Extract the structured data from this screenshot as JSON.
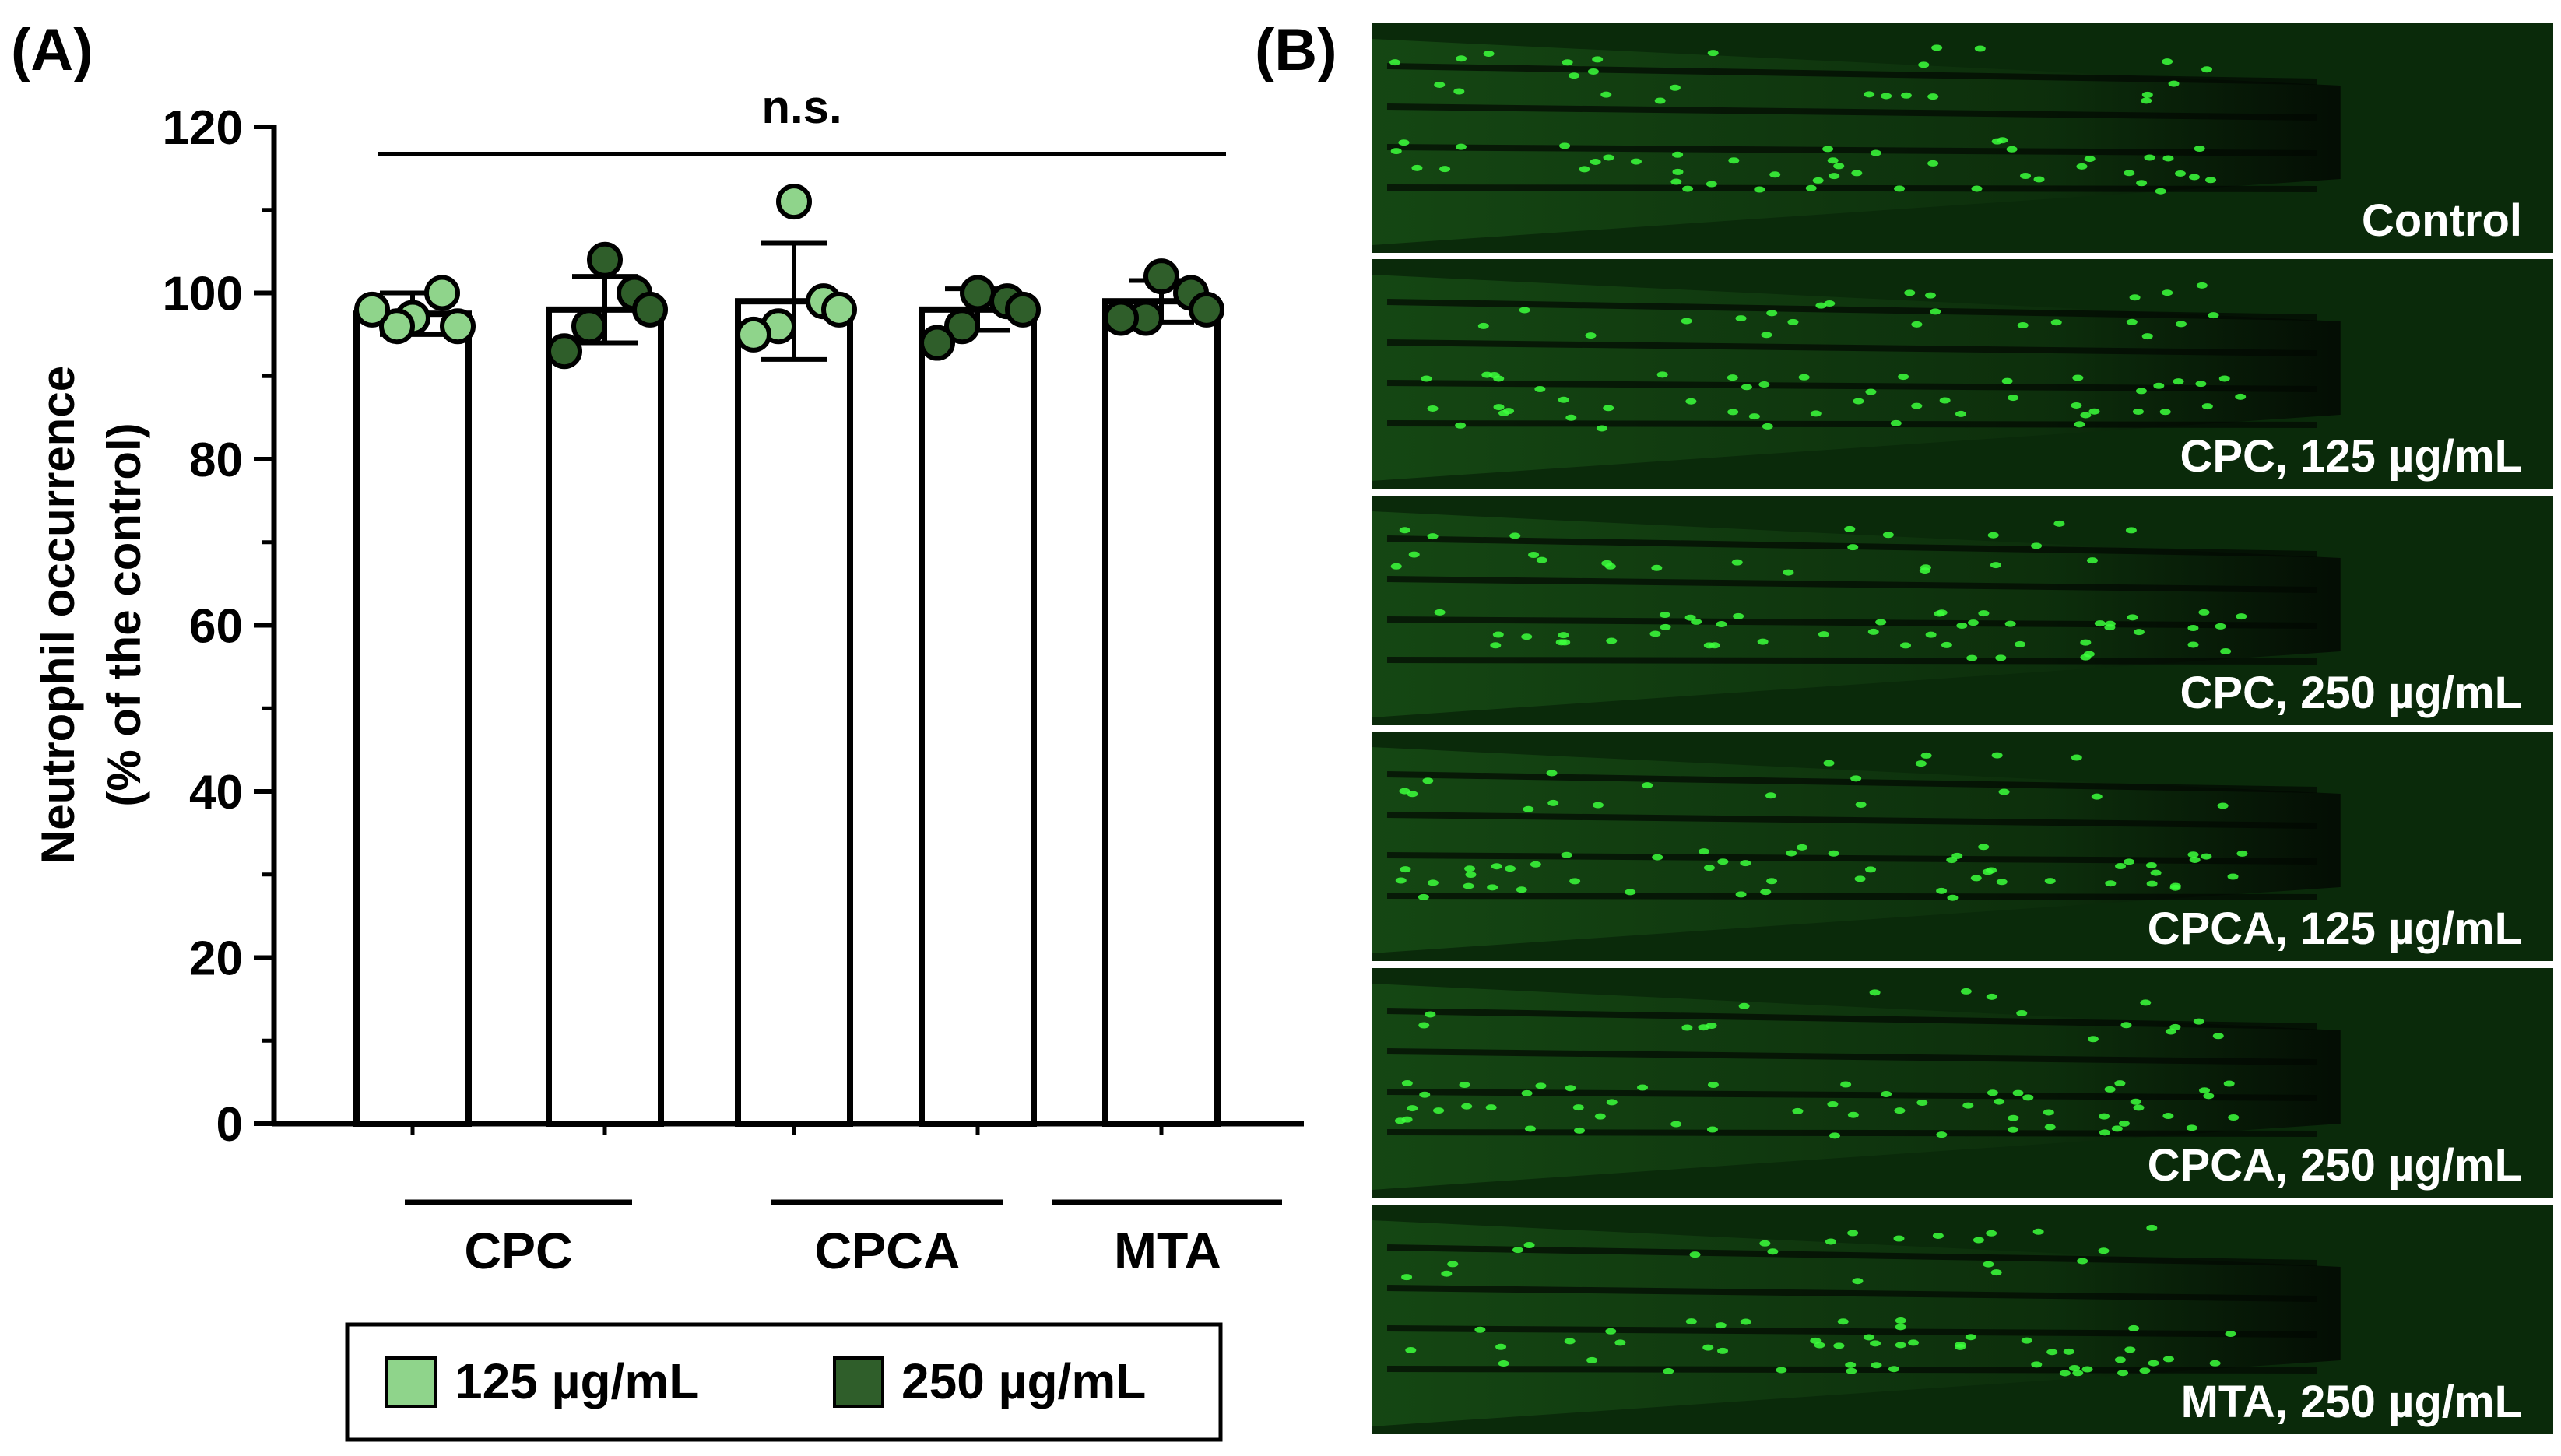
{
  "panel_a_label": "(A)",
  "panel_b_label": "(B)",
  "significance": "n.s.",
  "colors": {
    "low_dose": "#8fd48b",
    "high_dose": "#2f5e2a",
    "bar_fill": "#ffffff",
    "axis": "#000000",
    "micro_bg": "#0a2a0a",
    "micro_cell": "#3cff3c"
  },
  "chart_data": {
    "type": "bar",
    "ylabel_line1": "Neutrophil occurrence",
    "ylabel_line2": "(% of the control)",
    "ylim": [
      0,
      120
    ],
    "yticks": [
      "0",
      "20",
      "40",
      "60",
      "80",
      "100",
      "120"
    ],
    "group_labels": [
      "CPC",
      "CPCA",
      "MTA"
    ],
    "legend": [
      "125 µg/mL",
      "250 µg/mL"
    ],
    "bars": [
      {
        "group": "CPC",
        "dose": "125",
        "mean": 97.5,
        "sd": 2.5,
        "points": [
          97,
          100,
          96,
          98,
          96
        ]
      },
      {
        "group": "CPC",
        "dose": "250",
        "mean": 98,
        "sd": 4,
        "points": [
          104,
          100,
          96,
          93,
          98
        ]
      },
      {
        "group": "CPCA",
        "dose": "125",
        "mean": 99,
        "sd": 7,
        "points": [
          111,
          99,
          96,
          95,
          98
        ]
      },
      {
        "group": "CPCA",
        "dose": "250",
        "mean": 98,
        "sd": 2.5,
        "points": [
          100,
          99,
          96,
          94,
          98
        ]
      },
      {
        "group": "MTA",
        "dose": "250",
        "mean": 99,
        "sd": 2.5,
        "points": [
          102,
          100,
          97,
          97,
          98
        ]
      }
    ]
  },
  "micrographs": [
    {
      "label": "Control"
    },
    {
      "label": "CPC, 125 µg/mL"
    },
    {
      "label": "CPC, 250 µg/mL"
    },
    {
      "label": "CPCA, 125 µg/mL"
    },
    {
      "label": "CPCA, 250 µg/mL"
    },
    {
      "label": "MTA, 250 µg/mL"
    }
  ]
}
